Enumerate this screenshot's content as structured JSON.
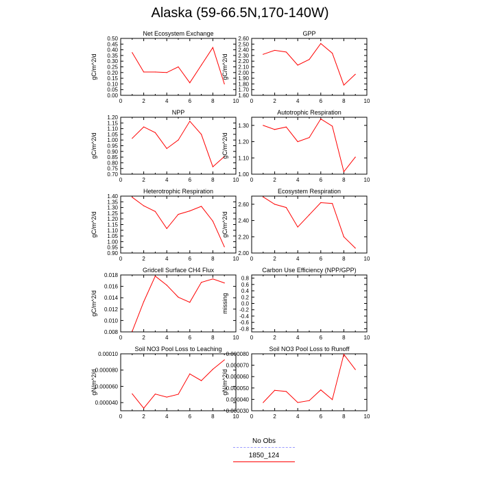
{
  "page_title": "Alaska (59-66.5N,170-140W)",
  "colors": {
    "model_line": "#ff0000",
    "obs_line": "#9999ff"
  },
  "legend": [
    {
      "label": "No Obs",
      "style": "dashed",
      "color": "#9999ff"
    },
    {
      "label": "1850_124",
      "style": "solid",
      "color": "#ff0000"
    }
  ],
  "chart_data": [
    {
      "type": "line",
      "title": "Net Ecosystem Exchange",
      "ylabel": "gC/m^2/d",
      "xlim": [
        0,
        10
      ],
      "ylim": [
        0,
        0.5
      ],
      "xticks": [
        "0",
        "2",
        "4",
        "6",
        "8",
        "10"
      ],
      "yticks": [
        "0.00",
        "0.05",
        "0.10",
        "0.15",
        "0.20",
        "0.25",
        "0.30",
        "0.35",
        "0.40",
        "0.45",
        "0.50"
      ],
      "x": [
        1,
        2,
        3,
        4,
        5,
        6,
        7,
        8,
        9
      ],
      "y": [
        0.375,
        0.205,
        0.205,
        0.2,
        0.25,
        0.11,
        0.265,
        0.42,
        0.1
      ]
    },
    {
      "type": "line",
      "title": "GPP",
      "ylabel": "gC/m^2/d",
      "xlim": [
        0,
        10
      ],
      "ylim": [
        1.6,
        2.6
      ],
      "xticks": [
        "0",
        "2",
        "4",
        "6",
        "8",
        "10"
      ],
      "yticks": [
        "1.60",
        "1.70",
        "1.80",
        "1.90",
        "2.00",
        "2.10",
        "2.20",
        "2.30",
        "2.40",
        "2.50",
        "2.60"
      ],
      "x": [
        1,
        2,
        3,
        4,
        5,
        6,
        7,
        8,
        9
      ],
      "y": [
        2.32,
        2.39,
        2.36,
        2.13,
        2.23,
        2.51,
        2.34,
        1.78,
        1.97
      ]
    },
    {
      "type": "line",
      "title": "NPP",
      "ylabel": "gC/m^2/d",
      "xlim": [
        0,
        10
      ],
      "ylim": [
        0.7,
        1.2
      ],
      "xticks": [
        "0",
        "2",
        "4",
        "6",
        "8",
        "10"
      ],
      "yticks": [
        "0.70",
        "0.75",
        "0.80",
        "0.85",
        "0.90",
        "0.95",
        "1.00",
        "1.05",
        "1.10",
        "1.15",
        "1.20"
      ],
      "x": [
        1,
        2,
        3,
        4,
        5,
        6,
        7,
        8,
        9
      ],
      "y": [
        1.015,
        1.115,
        1.065,
        0.925,
        1.0,
        1.165,
        1.05,
        0.765,
        0.855
      ]
    },
    {
      "type": "line",
      "title": "Autotrophic Respiration",
      "ylabel": "gC/m^2/d",
      "xlim": [
        0,
        10
      ],
      "ylim": [
        1.0,
        1.35
      ],
      "xticks": [
        "0",
        "2",
        "4",
        "6",
        "8",
        "10"
      ],
      "yticks": [
        "1.00",
        "1.10",
        "1.20",
        "1.30"
      ],
      "x": [
        1,
        2,
        3,
        4,
        5,
        6,
        7,
        8,
        9
      ],
      "y": [
        1.3,
        1.275,
        1.29,
        1.2,
        1.225,
        1.34,
        1.295,
        1.015,
        1.105
      ]
    },
    {
      "type": "line",
      "title": "Heterotrophic Respiration",
      "ylabel": "gC/m^2/d",
      "xlim": [
        0,
        10
      ],
      "ylim": [
        0.9,
        1.4
      ],
      "xticks": [
        "0",
        "2",
        "4",
        "6",
        "8",
        "10"
      ],
      "yticks": [
        "0.90",
        "0.95",
        "1.00",
        "1.05",
        "1.10",
        "1.15",
        "1.20",
        "1.25",
        "1.30",
        "1.35",
        "1.40"
      ],
      "x": [
        1,
        2,
        3,
        4,
        5,
        6,
        7,
        8,
        9
      ],
      "y": [
        1.39,
        1.315,
        1.265,
        1.115,
        1.24,
        1.27,
        1.31,
        1.18,
        0.955
      ]
    },
    {
      "type": "line",
      "title": "Ecosystem Respiration",
      "ylabel": "gC/m^2/d",
      "xlim": [
        0,
        10
      ],
      "ylim": [
        2.0,
        2.7
      ],
      "xticks": [
        "0",
        "2",
        "4",
        "6",
        "8",
        "10"
      ],
      "yticks": [
        "2.00",
        "2.20",
        "2.40",
        "2.60"
      ],
      "x": [
        1,
        2,
        3,
        4,
        5,
        6,
        7,
        8,
        9
      ],
      "y": [
        2.69,
        2.6,
        2.56,
        2.32,
        2.47,
        2.62,
        2.61,
        2.2,
        2.06
      ]
    },
    {
      "type": "line",
      "title": "Gridcell Surface CH4 Flux",
      "ylabel": "gC/m^2/d",
      "xlim": [
        0,
        10
      ],
      "ylim": [
        0.008,
        0.018
      ],
      "xticks": [
        "0",
        "2",
        "4",
        "6",
        "8",
        "10"
      ],
      "yticks": [
        "0.008",
        "0.010",
        "0.012",
        "0.014",
        "0.016",
        "0.018"
      ],
      "x": [
        1,
        2,
        3,
        4,
        5,
        6,
        7,
        8,
        9
      ],
      "y": [
        0.0081,
        0.0133,
        0.0178,
        0.0162,
        0.0141,
        0.0132,
        0.0167,
        0.0173,
        0.0166
      ]
    },
    {
      "type": "line",
      "title": "Carbon Use Efficiency (NPP/GPP)",
      "ylabel": "missing",
      "xlim": [
        0,
        10
      ],
      "ylim": [
        -0.9,
        0.9
      ],
      "xticks": [
        "0",
        "2",
        "4",
        "6",
        "8",
        "10"
      ],
      "yticks": [
        "-0.8",
        "-0.6",
        "-0.4",
        "-0.2",
        "0.0",
        "0.2",
        "0.4",
        "0.6",
        "0.8"
      ],
      "x": [],
      "y": []
    },
    {
      "type": "line",
      "title": "Soil NO3 Pool Loss to Leaching",
      "ylabel": "gN/m^2/d",
      "xlim": [
        0,
        10
      ],
      "ylim": [
        3e-05,
        0.0001
      ],
      "xticks": [
        "0",
        "2",
        "4",
        "6",
        "8",
        "10"
      ],
      "yticks": [
        "0.000040",
        "0.000060",
        "0.000080",
        "0.00010"
      ],
      "x": [
        1,
        2,
        3,
        4,
        5,
        6,
        7,
        8,
        9
      ],
      "y": [
        5.08e-05,
        3.31e-05,
        5.05e-05,
        4.68e-05,
        5.02e-05,
        7.53e-05,
        6.7e-05,
        8.1e-05,
        9.25e-05
      ]
    },
    {
      "type": "line",
      "title": "Soil NO3 Pool Loss to Runoff",
      "ylabel": "gN/m^2/d",
      "xlim": [
        0,
        10
      ],
      "ylim": [
        3e-05,
        8e-05
      ],
      "xticks": [
        "0",
        "2",
        "4",
        "6",
        "8",
        "10"
      ],
      "yticks": [
        "0.000030",
        "0.000040",
        "0.000050",
        "0.000060",
        "0.000070",
        "0.000080"
      ],
      "x": [
        1,
        2,
        3,
        4,
        5,
        6,
        7,
        8,
        9
      ],
      "y": [
        3.72e-05,
        4.79e-05,
        4.69e-05,
        3.72e-05,
        3.89e-05,
        4.83e-05,
        3.98e-05,
        7.95e-05,
        6.62e-05
      ]
    }
  ]
}
